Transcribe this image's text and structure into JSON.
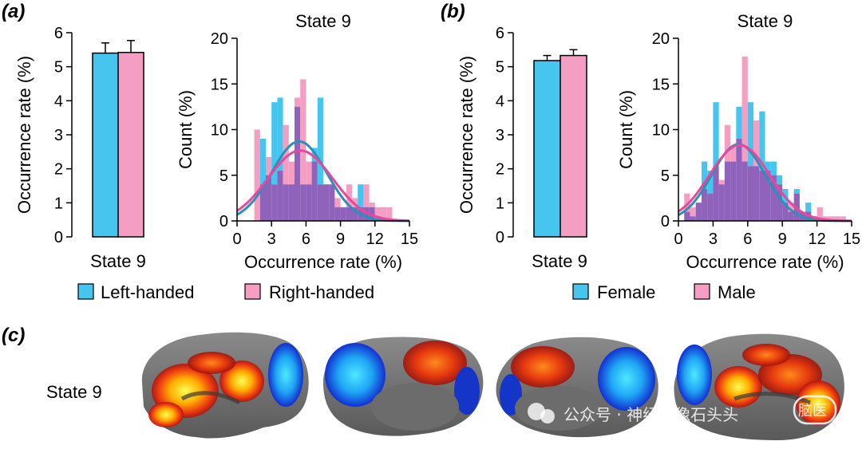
{
  "panels": {
    "a": "(a)",
    "b": "(b)",
    "c": "(c)"
  },
  "colors": {
    "blue_fill": "#46C6EE",
    "pink_fill": "#F59EC3",
    "overlap_fill": "#8F62BC",
    "blue_curve": "#2C8FB8",
    "pink_curve": "#E8479A"
  },
  "chart_data": [
    {
      "id": "a-bar",
      "type": "bar",
      "categories": [
        "State 9"
      ],
      "series": [
        {
          "name": "Left-handed",
          "values": [
            5.4
          ],
          "errors": [
            0.3
          ]
        },
        {
          "name": "Right-handed",
          "values": [
            5.42
          ],
          "errors": [
            0.35
          ]
        }
      ],
      "xlabel": "State 9",
      "ylabel": "Occurrence rate (%)",
      "ylim": [
        0,
        6
      ],
      "yticks": [
        0,
        1,
        2,
        3,
        4,
        5,
        6
      ]
    },
    {
      "id": "a-hist",
      "type": "bar",
      "title": "State 9",
      "xlabel": "Occurrence rate (%)",
      "ylabel": "Count (%)",
      "xlim": [
        0,
        15
      ],
      "ylim": [
        0,
        20
      ],
      "xticks": [
        0,
        3,
        6,
        9,
        12,
        15
      ],
      "yticks": [
        0,
        5,
        10,
        15,
        20
      ],
      "bin_edges": [
        1.5,
        2.0,
        2.5,
        3.0,
        3.5,
        4.0,
        4.5,
        5.0,
        5.5,
        6.0,
        6.5,
        7.0,
        7.5,
        8.0,
        8.5,
        9.0,
        9.5,
        10.0,
        10.5,
        11.0,
        11.5,
        12.0,
        12.5,
        13.0,
        13.5,
        14.0
      ],
      "series": [
        {
          "name": "Left-handed",
          "values": [
            0,
            9,
            5,
            13,
            13.5,
            4,
            4,
            12.5,
            4,
            4,
            8,
            13.5,
            4,
            4,
            1.5,
            1.5,
            1.5,
            1.5,
            4,
            1.5,
            1.5,
            0,
            0,
            0,
            0
          ]
        },
        {
          "name": "Right-handed",
          "values": [
            10,
            4,
            7,
            4,
            5.5,
            10.5,
            6.5,
            13.5,
            15.5,
            6.5,
            6.5,
            4,
            4,
            4,
            2.5,
            1.5,
            4,
            2.5,
            1.5,
            4,
            2,
            1.5,
            1.5,
            1.5,
            0
          ]
        }
      ],
      "fits": [
        {
          "name": "Left-handed",
          "mean": 5.4,
          "sd": 2.4,
          "peak": 8.7
        },
        {
          "name": "Right-handed",
          "mean": 5.5,
          "sd": 2.8,
          "peak": 7.7
        }
      ]
    },
    {
      "id": "b-bar",
      "type": "bar",
      "categories": [
        "State 9"
      ],
      "series": [
        {
          "name": "Female",
          "values": [
            5.18
          ],
          "errors": [
            0.15
          ]
        },
        {
          "name": "Male",
          "values": [
            5.33
          ],
          "errors": [
            0.17
          ]
        }
      ],
      "xlabel": "State 9",
      "ylabel": "Occurrence rate (%)",
      "ylim": [
        0,
        6
      ],
      "yticks": [
        0,
        1,
        2,
        3,
        4,
        5,
        6
      ]
    },
    {
      "id": "b-hist",
      "type": "bar",
      "title": "State 9",
      "xlabel": "Occurrence rate (%)",
      "ylabel": "Count (%)",
      "xlim": [
        0,
        15
      ],
      "ylim": [
        0,
        20
      ],
      "xticks": [
        0,
        3,
        6,
        9,
        12,
        15
      ],
      "yticks": [
        0,
        5,
        10,
        15,
        20
      ],
      "bin_edges": [
        0.5,
        1.0,
        1.5,
        2.0,
        2.5,
        3.0,
        3.5,
        4.0,
        4.5,
        5.0,
        5.5,
        6.0,
        6.5,
        7.0,
        7.5,
        8.0,
        8.5,
        9.0,
        9.5,
        10.0,
        10.5,
        11.0,
        11.5,
        12.0,
        12.5,
        13.0,
        13.5,
        14.0,
        14.5
      ],
      "series": [
        {
          "name": "Female",
          "values": [
            1,
            0.5,
            2,
            6.5,
            5.5,
            13,
            4,
            6.5,
            6.5,
            12.5,
            6.5,
            13,
            6,
            12,
            6.5,
            6.5,
            5,
            3.5,
            1,
            3.5,
            1,
            2,
            0.5,
            0,
            0,
            0,
            0,
            0
          ]
        },
        {
          "name": "Male",
          "values": [
            3,
            1.5,
            2,
            3.5,
            3,
            6,
            4.5,
            10.5,
            8,
            9,
            18,
            6,
            11,
            5.5,
            5.5,
            5,
            4,
            2,
            2,
            3,
            1,
            1,
            0.5,
            1.5,
            0.5,
            0.5,
            0.5,
            0.5
          ]
        }
      ],
      "fits": [
        {
          "name": "Female",
          "mean": 5.2,
          "sd": 2.3,
          "peak": 8.4
        },
        {
          "name": "Male",
          "mean": 5.3,
          "sd": 2.6,
          "peak": 8.3
        }
      ]
    }
  ],
  "legends": {
    "a": [
      "Left-handed",
      "Right-handed"
    ],
    "b": [
      "Female",
      "Male"
    ]
  },
  "brain": {
    "label": "State 9"
  },
  "watermark": {
    "text": "公众号 · 神经影像石头头",
    "stamp": "脑医"
  }
}
